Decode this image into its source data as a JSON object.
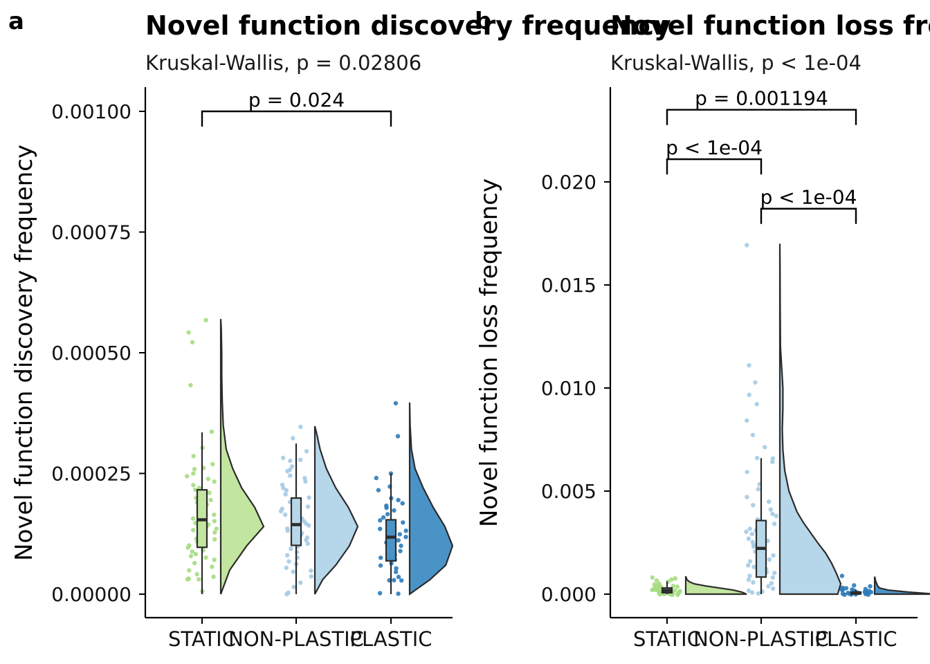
{
  "chart_data": [
    {
      "panel": "a",
      "type": "violin",
      "title": "Novel function discovery frequency",
      "subtitle": "Kruskal-Wallis, p = 0.02806",
      "xlabel": "",
      "ylabel": "Novel function discovery frequency",
      "categories": [
        "STATIC",
        "NON-PLASTIC",
        "PLASTIC"
      ],
      "colors": [
        "#C2E69F",
        "#B6D6EA",
        "#4A93C7"
      ],
      "point_colors": [
        "#A6DB82",
        "#A4CBE4",
        "#2B7BBA"
      ],
      "ylim": [
        -5e-05,
        0.00105
      ],
      "yticks": [
        0,
        0.00025,
        0.0005,
        0.00075,
        0.001
      ],
      "ytick_labels": [
        "0.00000",
        "0.00025",
        "0.00050",
        "0.00075",
        "0.00100"
      ],
      "box_stats": [
        {
          "name": "STATIC",
          "min": 0.0,
          "q1": 9.7e-05,
          "median": 0.000154,
          "q3": 0.000216,
          "max": 0.000335
        },
        {
          "name": "NON-PLASTIC",
          "min": 0.0,
          "q1": 0.000101,
          "median": 0.000144,
          "q3": 0.000199,
          "max": 0.000312
        },
        {
          "name": "PLASTIC",
          "min": 0.0,
          "q1": 6.9e-05,
          "median": 0.000118,
          "q3": 0.000154,
          "max": 0.00025
        }
      ],
      "density": [
        {
          "name": "STATIC",
          "y": [
            0,
            5e-05,
            0.0001,
            0.00014,
            0.00018,
            0.00022,
            0.00026,
            0.0003,
            0.00035,
            0.0004,
            0.00045,
            0.0005,
            0.00055,
            0.00057
          ],
          "w": [
            0.0,
            0.18,
            0.52,
            0.86,
            0.68,
            0.42,
            0.24,
            0.11,
            0.05,
            0.03,
            0.02,
            0.02,
            0.01,
            0.0
          ]
        },
        {
          "name": "NON-PLASTIC",
          "y": [
            0,
            3e-05,
            6e-05,
            0.0001,
            0.00014,
            0.00018,
            0.00022,
            0.00026,
            0.0003,
            0.00033,
            0.000348
          ],
          "w": [
            0.0,
            0.15,
            0.4,
            0.66,
            0.82,
            0.64,
            0.4,
            0.22,
            0.1,
            0.04,
            0.0
          ]
        },
        {
          "name": "PLASTIC",
          "y": [
            0,
            3e-05,
            6e-05,
            0.0001,
            0.00014,
            0.00018,
            0.00022,
            0.00026,
            0.0003,
            0.00035,
            0.000397
          ],
          "w": [
            0.0,
            0.45,
            0.8,
            0.95,
            0.78,
            0.52,
            0.3,
            0.12,
            0.04,
            0.01,
            0.0
          ]
        }
      ],
      "points": [
        {
          "name": "STATIC",
          "values": [
            0.000569,
            0.000541,
            0.000522,
            0.000434,
            0.000337,
            0.000302,
            0.000285,
            0.00027,
            0.000262,
            0.000258,
            0.00025,
            0.000245,
            0.00024,
            0.000232,
            0.000225,
            0.000221,
            0.000216,
            0.00021,
            0.000205,
            0.0002,
            0.000195,
            0.00019,
            0.000185,
            0.00018,
            0.000175,
            0.00017,
            0.000165,
            0.00016,
            0.000156,
            0.000152,
            0.000148,
            0.000144,
            0.00014,
            0.000136,
            0.000132,
            0.000128,
            0.000124,
            0.00012,
            0.000116,
            0.000112,
            0.000108,
            0.000104,
            0.0001,
            9.6e-05,
            9.2e-05,
            8.8e-05,
            8.4e-05,
            8e-05,
            7.5e-05,
            7e-05,
            6.5e-05,
            5.8e-05,
            5e-05,
            4.2e-05,
            3.6e-05,
            3.3e-05,
            3.1e-05,
            3e-05,
            5e-06
          ]
        },
        {
          "name": "NON-PLASTIC",
          "values": [
            0.000346,
            0.000323,
            0.000295,
            0.000283,
            0.000279,
            0.000276,
            0.000264,
            0.000259,
            0.000254,
            0.000247,
            0.00024,
            0.000233,
            0.000226,
            0.00022,
            0.000214,
            0.000207,
            0.000201,
            0.000196,
            0.000191,
            0.000186,
            0.000181,
            0.000176,
            0.000171,
            0.000166,
            0.000161,
            0.000156,
            0.000151,
            0.000146,
            0.000141,
            0.000136,
            0.000131,
            0.000126,
            0.000121,
            0.000116,
            0.000111,
            0.000105,
            9.9e-05,
            9.3e-05,
            8.7e-05,
            8.1e-05,
            7.5e-05,
            6.8e-05,
            6.1e-05,
            5.5e-05,
            5e-05,
            4.5e-05,
            3.6e-05,
            2.5e-05,
            1.6e-05,
            2e-06,
            1e-06
          ]
        },
        {
          "name": "PLASTIC",
          "values": [
            0.000396,
            0.000328,
            0.000251,
            0.000241,
            0.000224,
            0.000216,
            0.000199,
            0.000194,
            0.000189,
            0.000184,
            0.000178,
            0.000172,
            0.000166,
            0.00016,
            0.000154,
            0.000148,
            0.000142,
            0.000136,
            0.00013,
            0.000124,
            0.000118,
            0.000112,
            0.000106,
            0.0001,
            9.4e-05,
            8.8e-05,
            8.2e-05,
            7.6e-05,
            7e-05,
            6.4e-05,
            5.8e-05,
            5.2e-05,
            4.6e-05,
            3.6e-05,
            3e-05,
            2.9e-05,
            2.8e-05,
            1e-06,
            0.0
          ]
        }
      ],
      "comparisons": [
        {
          "from": "STATIC",
          "to": "PLASTIC",
          "label": "p = 0.024",
          "y": 0.001
        }
      ]
    },
    {
      "panel": "b",
      "type": "violin",
      "title": "Novel function loss frequency",
      "subtitle": "Kruskal-Wallis, p < 1e-04",
      "xlabel": "",
      "ylabel": "Novel function loss frequency",
      "categories": [
        "STATIC",
        "NON-PLASTIC",
        "PLASTIC"
      ],
      "colors": [
        "#C2E69F",
        "#B6D6EA",
        "#4A93C7"
      ],
      "point_colors": [
        "#A6DB82",
        "#A4CBE4",
        "#2B7BBA"
      ],
      "ylim": [
        -0.0012,
        0.0246
      ],
      "yticks": [
        0,
        0.005,
        0.01,
        0.015,
        0.02
      ],
      "ytick_labels": [
        "0.000",
        "0.005",
        "0.010",
        "0.015",
        "0.020"
      ],
      "box_stats": [
        {
          "name": "STATIC",
          "min": 0.0,
          "q1": 7e-05,
          "median": 0.00018,
          "q3": 0.0003,
          "max": 0.00062
        },
        {
          "name": "NON-PLASTIC",
          "min": 0.0,
          "q1": 0.00083,
          "median": 0.00222,
          "q3": 0.00357,
          "max": 0.0066
        },
        {
          "name": "PLASTIC",
          "min": 0.0,
          "q1": 1e-05,
          "median": 5e-05,
          "q3": 0.0001,
          "max": 0.00022
        }
      ],
      "density": [
        {
          "name": "STATIC",
          "y": [
            0,
            0.0001,
            0.0002,
            0.0003,
            0.0004,
            0.0005,
            0.0006,
            0.0007,
            0.00087
          ],
          "w": [
            1.0,
            0.92,
            0.78,
            0.55,
            0.32,
            0.14,
            0.06,
            0.02,
            0.0
          ]
        },
        {
          "name": "NON-PLASTIC",
          "y": [
            0,
            0.0005,
            0.001,
            0.0015,
            0.002,
            0.0025,
            0.003,
            0.0035,
            0.004,
            0.005,
            0.006,
            0.007,
            0.008,
            0.009,
            0.01,
            0.011,
            0.012,
            0.014,
            0.016,
            0.017
          ],
          "w": [
            0.95,
            1.0,
            0.93,
            0.85,
            0.75,
            0.62,
            0.5,
            0.38,
            0.28,
            0.15,
            0.08,
            0.05,
            0.04,
            0.05,
            0.05,
            0.03,
            0.01,
            0.005,
            0.003,
            0.0
          ]
        },
        {
          "name": "PLASTIC",
          "y": [
            0,
            0.0001,
            0.0002,
            0.0003,
            0.0004,
            0.0006,
            0.00085
          ],
          "w": [
            1.0,
            0.55,
            0.22,
            0.08,
            0.05,
            0.02,
            0.0
          ]
        }
      ],
      "points": [
        {
          "name": "STATIC",
          "values": [
            0.00082,
            0.00074,
            0.00069,
            0.00063,
            0.00058,
            0.00054,
            0.0005,
            0.00046,
            0.00042,
            0.00039,
            0.00036,
            0.00033,
            0.0003,
            0.00028,
            0.00026,
            0.00024,
            0.00022,
            0.0002,
            0.00018,
            0.00016,
            0.00014,
            0.00012,
            0.0001,
            9e-05,
            8e-05,
            7e-05,
            6e-05,
            5e-05,
            4e-05,
            3e-05,
            2e-05,
            1e-05,
            1e-05,
            0.0,
            0.0,
            0.0,
            0.0,
            0.0,
            0.0,
            0.0
          ]
        },
        {
          "name": "NON-PLASTIC",
          "values": [
            0.0169,
            0.0111,
            0.0103,
            0.0097,
            0.0092,
            0.0084,
            0.0077,
            0.0071,
            0.0066,
            0.0066,
            0.0064,
            0.0059,
            0.0053,
            0.0051,
            0.0047,
            0.0045,
            0.0043,
            0.0041,
            0.0039,
            0.0038,
            0.0036,
            0.0035,
            0.0034,
            0.0032,
            0.0031,
            0.003,
            0.0029,
            0.0028,
            0.0027,
            0.0026,
            0.0025,
            0.0024,
            0.0023,
            0.0022,
            0.0021,
            0.002,
            0.0019,
            0.0018,
            0.0017,
            0.0016,
            0.0015,
            0.0014,
            0.0013,
            0.0012,
            0.0011,
            0.001,
            0.0009,
            0.0008,
            0.0007,
            0.0006,
            0.0005,
            0.0004,
            0.0003,
            0.0002,
            0.0001,
            5e-05,
            1e-05
          ]
        },
        {
          "name": "PLASTIC",
          "values": [
            0.00088,
            0.00045,
            0.00039,
            0.00033,
            0.00028,
            0.00025,
            0.00022,
            0.0002,
            0.00018,
            0.00016,
            0.00014,
            0.00012,
            0.0001,
            9e-05,
            8e-05,
            7e-05,
            6e-05,
            5e-05,
            4e-05,
            3e-05,
            2e-05,
            1e-05,
            1e-05,
            0.0,
            0.0,
            0.0,
            0.0,
            0.0
          ]
        }
      ],
      "comparisons": [
        {
          "from": "STATIC",
          "to": "PLASTIC",
          "label": "p = 0.001194",
          "y": 0.0235
        },
        {
          "from": "STATIC",
          "to": "NON-PLASTIC",
          "label": "p < 1e-04",
          "y": 0.0211
        },
        {
          "from": "NON-PLASTIC",
          "to": "PLASTIC",
          "label": "p < 1e-04",
          "y": 0.0187
        }
      ]
    }
  ]
}
